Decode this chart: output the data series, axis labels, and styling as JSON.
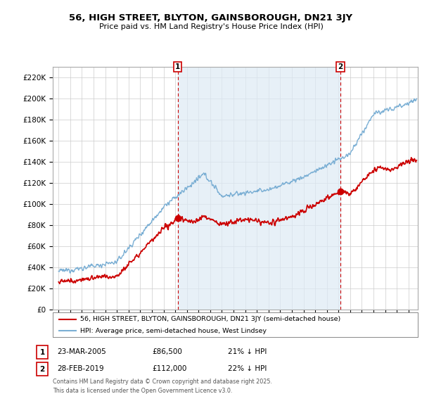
{
  "title": "56, HIGH STREET, BLYTON, GAINSBOROUGH, DN21 3JY",
  "subtitle": "Price paid vs. HM Land Registry's House Price Index (HPI)",
  "hpi_color": "#7bafd4",
  "hpi_fill_color": "#ddeaf5",
  "price_color": "#cc0000",
  "annotation_color": "#cc0000",
  "background_color": "#ffffff",
  "grid_color": "#cccccc",
  "ylim": [
    0,
    230000
  ],
  "yticks": [
    0,
    20000,
    40000,
    60000,
    80000,
    100000,
    120000,
    140000,
    160000,
    180000,
    200000,
    220000
  ],
  "xlim_start": 1994.5,
  "xlim_end": 2025.8,
  "marker1_x": 2005.22,
  "marker1_y": 86500,
  "marker2_x": 2019.16,
  "marker2_y": 112000,
  "legend_line1": "56, HIGH STREET, BLYTON, GAINSBOROUGH, DN21 3JY (semi-detached house)",
  "legend_line2": "HPI: Average price, semi-detached house, West Lindsey",
  "ann1_date": "23-MAR-2005",
  "ann1_price": "£86,500",
  "ann1_hpi": "21% ↓ HPI",
  "ann2_date": "28-FEB-2019",
  "ann2_price": "£112,000",
  "ann2_hpi": "22% ↓ HPI",
  "footer": "Contains HM Land Registry data © Crown copyright and database right 2025.\nThis data is licensed under the Open Government Licence v3.0."
}
